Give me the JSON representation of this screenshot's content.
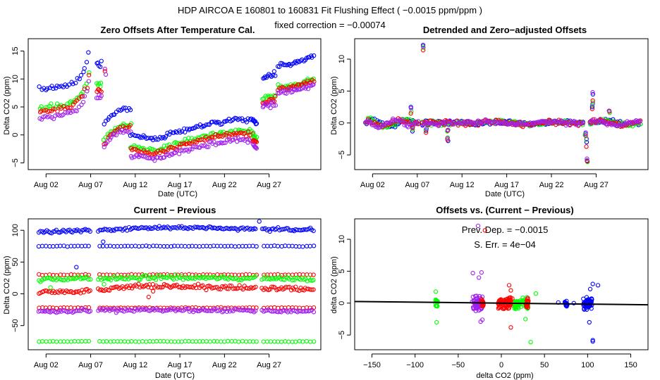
{
  "suptitle": "HDP   AIRCOA E   160801 to 160831   Fit Flushing Effect ( −0.0015 ppm/ppm )",
  "fixed_correction": "fixed correction = −0.00074",
  "colors": {
    "blue": "#0000ff",
    "green": "#00ff00",
    "red": "#ff0000",
    "purple": "#a020f0",
    "axis": "#000000"
  },
  "chart_data": [
    {
      "id": "p1",
      "type": "scatter",
      "title": "Zero Offsets After Temperature Cal.",
      "xlabel": "Date (UTC)",
      "ylabel": "Delta CO2 (ppm)",
      "xlim": [
        -1.0,
        31.8
      ],
      "ylim": [
        -6.2,
        17.2
      ],
      "xticks": [
        1,
        6,
        11,
        16,
        21,
        26
      ],
      "xticklabels": [
        "Aug 02",
        "Aug 07",
        "Aug 12",
        "Aug 17",
        "Aug 22",
        "Aug 27"
      ],
      "yticks": [
        -5,
        0,
        5,
        10,
        15
      ],
      "yticklabels": [
        "−5",
        "0",
        "5",
        "10",
        "15"
      ],
      "segments": [
        {
          "x0": 0.3,
          "x1": 5.9,
          "step": 0.22,
          "noise": 0.3,
          "base": [
            8.2,
            4.8,
            4.2,
            3.0
          ],
          "ctrl": [
            [
              0,
              0
            ],
            [
              3,
              0.6
            ],
            [
              4.5,
              2
            ],
            [
              5.3,
              4.5
            ],
            [
              5.6,
              7.2
            ]
          ]
        },
        {
          "x0": 6.7,
          "x1": 7.2,
          "step": 0.12,
          "noise": 0.6,
          "base": [
            12.3,
            8.8,
            7.8,
            7.0
          ],
          "ctrl": [
            [
              0,
              0
            ],
            [
              1,
              0
            ]
          ]
        },
        {
          "x0": 7.5,
          "x1": 10.5,
          "step": 0.2,
          "noise": 0.25,
          "base": [
            2.0,
            -0.8,
            -1.3,
            -1.9
          ],
          "ctrl": [
            [
              0,
              0
            ],
            [
              1,
              1.6
            ],
            [
              2,
              2.6
            ]
          ]
        },
        {
          "x0": 10.5,
          "x1": 24.2,
          "step": 0.18,
          "noise": 0.3,
          "base": [
            -0.2,
            -2.2,
            -2.7,
            -3.8
          ],
          "ctrl": [
            [
              0,
              0
            ],
            [
              3,
              -0.5
            ],
            [
              5,
              0.6
            ],
            [
              9,
              2.2
            ],
            [
              12,
              3.0
            ],
            [
              13.7,
              2.8
            ]
          ]
        },
        {
          "x0": 24.2,
          "x1": 24.6,
          "step": 0.08,
          "noise": 0.3,
          "base": [
            2.5,
            0.0,
            -0.8,
            -1.8
          ],
          "ctrl": [
            [
              0,
              0
            ],
            [
              1,
              -1.5
            ]
          ]
        },
        {
          "x0": 25.3,
          "x1": 26.8,
          "step": 0.14,
          "noise": 0.35,
          "base": [
            10.3,
            6.5,
            5.8,
            5.0
          ],
          "ctrl": [
            [
              0,
              0
            ],
            [
              1,
              0.4
            ]
          ]
        },
        {
          "x0": 27.0,
          "x1": 31.0,
          "step": 0.16,
          "noise": 0.25,
          "base": [
            12.5,
            8.5,
            8.2,
            7.5
          ],
          "ctrl": [
            [
              0,
              0
            ],
            [
              2,
              0.4
            ],
            [
              4,
              1.6
            ]
          ]
        }
      ],
      "extra_points": [
        {
          "x": 7.6,
          "y": 11.8,
          "s": 3
        },
        {
          "x": 7.6,
          "y": 11.4,
          "s": 2
        },
        {
          "x": 7.7,
          "y": 10.8,
          "s": 3
        }
      ]
    },
    {
      "id": "p2",
      "type": "scatter",
      "title": "Detrended and Zero−adjusted Offsets",
      "xlabel": "Date (UTC)",
      "ylabel": "Delta CO2 (ppm)",
      "xlim": [
        -1.0,
        31.8
      ],
      "ylim": [
        -7.3,
        13.2
      ],
      "xticks": [
        1,
        6,
        11,
        16,
        21,
        26
      ],
      "xticklabels": [
        "Aug 02",
        "Aug 07",
        "Aug 12",
        "Aug 17",
        "Aug 22",
        "Aug 27"
      ],
      "yticks": [
        -5,
        0,
        5,
        10
      ],
      "yticklabels": [
        "−5",
        "0",
        "5",
        "10"
      ],
      "range": [
        0.2,
        31.0
      ],
      "gaps": [
        [
          6.2,
          6.6
        ],
        [
          10.2,
          10.4
        ],
        [
          24.6,
          25.2
        ]
      ],
      "step": 0.16,
      "noise": 0.25,
      "bumps": [
        {
          "x0": 0.5,
          "x1": 5.6,
          "amp": 0.5,
          "freq": 1.6
        },
        {
          "x0": 10.5,
          "x1": 24.2,
          "amp": 0.15,
          "freq": 0.9
        },
        {
          "x0": 25.3,
          "x1": 31.0,
          "amp": 0.3,
          "freq": 1.2
        }
      ],
      "spikes": [
        {
          "x": 5.3,
          "ys": [
            2.5,
            1.8,
            1.5,
            2.3
          ]
        },
        {
          "x": 5.5,
          "ys": [
            -1.3,
            -1.0,
            -0.8,
            -0.6
          ]
        },
        {
          "x": 6.7,
          "ys": [
            12.2,
            11.8,
            11.4,
            12.0
          ]
        },
        {
          "x": 7.0,
          "ys": [
            -1.2,
            -1.0,
            -1.5,
            -0.9
          ]
        },
        {
          "x": 9.4,
          "ys": [
            -2.8,
            -2.3,
            -2.6,
            -2.4
          ]
        },
        {
          "x": 9.4,
          "ys": [
            -1.1,
            -1.3,
            -1.2,
            -1.1
          ]
        },
        {
          "x": 24.8,
          "ys": [
            -1.7,
            -1.9,
            -2.0,
            -1.5
          ]
        },
        {
          "x": 24.9,
          "ys": [
            -3.0,
            -2.6,
            -3.7,
            -2.5
          ]
        },
        {
          "x": 25.0,
          "ys": [
            -5.9,
            -6.1,
            -6.0,
            -5.6
          ]
        },
        {
          "x": 25.6,
          "ys": [
            4.5,
            2.8,
            2.2,
            4.8
          ]
        },
        {
          "x": 25.6,
          "ys": [
            2.5,
            3.2,
            3.5,
            3.0
          ]
        },
        {
          "x": 27.5,
          "ys": [
            1.9,
            1.6,
            1.8,
            1.9
          ]
        }
      ]
    },
    {
      "id": "p3",
      "type": "scatter",
      "title": "Current − Previous",
      "xlabel": "Date (UTC)",
      "ylabel": "Delta CO2 (ppm)",
      "xlim": [
        -1.0,
        31.8
      ],
      "ylim": [
        -88,
        118
      ],
      "xticks": [
        1,
        6,
        11,
        16,
        21,
        26
      ],
      "xticklabels": [
        "Aug 02",
        "Aug 07",
        "Aug 12",
        "Aug 17",
        "Aug 22",
        "Aug 27"
      ],
      "yticks": [
        -50,
        0,
        50,
        100
      ],
      "yticklabels": [
        "−50",
        "0",
        "50",
        "100"
      ],
      "range": [
        0.2,
        31.0
      ],
      "gaps": [
        [
          6.0,
          6.8
        ],
        [
          24.6,
          25.2
        ]
      ],
      "step": 0.4,
      "dense_step": 0.18,
      "bands": [
        {
          "color": "blue",
          "level": 100,
          "dense": true,
          "ctrl": [
            [
              0,
              -2
            ],
            [
              6,
              -1
            ],
            [
              11,
              3
            ],
            [
              16,
              5
            ],
            [
              20,
              4
            ],
            [
              24,
              2
            ],
            [
              31,
              1
            ]
          ],
          "noise": 2.0
        },
        {
          "color": "blue",
          "level": 75,
          "dense": false,
          "ctrl": [
            [
              0,
              0
            ],
            [
              31,
              0
            ]
          ],
          "noise": 0.4
        },
        {
          "color": "red",
          "level": 30,
          "dense": false,
          "ctrl": [
            [
              0,
              0
            ],
            [
              31,
              0
            ]
          ],
          "noise": 0.5
        },
        {
          "color": "green",
          "level": 23,
          "dense": true,
          "ctrl": [
            [
              0,
              0
            ],
            [
              12,
              2
            ],
            [
              20,
              3
            ],
            [
              31,
              0
            ]
          ],
          "noise": 2.5
        },
        {
          "color": "red",
          "level": 5,
          "dense": true,
          "ctrl": [
            [
              0,
              -2
            ],
            [
              6,
              -1
            ],
            [
              11,
              8
            ],
            [
              16,
              7
            ],
            [
              20,
              5
            ],
            [
              24,
              4
            ],
            [
              31,
              2
            ]
          ],
          "noise": 2.5
        },
        {
          "color": "red",
          "level": -22,
          "dense": false,
          "ctrl": [
            [
              0,
              0
            ],
            [
              31,
              0
            ]
          ],
          "noise": 0.5
        },
        {
          "color": "purple",
          "level": -28,
          "dense": true,
          "ctrl": [
            [
              0,
              0
            ],
            [
              12,
              3
            ],
            [
              20,
              2
            ],
            [
              31,
              0
            ]
          ],
          "noise": 2.0
        },
        {
          "color": "green",
          "level": -75,
          "dense": false,
          "ctrl": [
            [
              0,
              0
            ],
            [
              31,
              0
            ]
          ],
          "noise": 0.4
        }
      ],
      "outliers": [
        {
          "x": 4.4,
          "y": 42,
          "c": "blue"
        },
        {
          "x": 7.4,
          "y": 82,
          "c": "blue"
        },
        {
          "x": 24.9,
          "y": 114,
          "c": "blue"
        },
        {
          "x": 12.5,
          "y": -5,
          "c": "red"
        },
        {
          "x": 13.0,
          "y": 4,
          "c": "red"
        },
        {
          "x": 1.5,
          "y": 10,
          "c": "green"
        },
        {
          "x": 7.5,
          "y": 15,
          "c": "green"
        }
      ]
    },
    {
      "id": "p4",
      "type": "scatter",
      "title": "Offsets vs. (Current − Previous)",
      "xlabel": "delta CO2 (ppm)",
      "ylabel": "delta CO2 (ppm)",
      "xlim": [
        -170,
        170
      ],
      "ylim": [
        -7.3,
        13.2
      ],
      "xticks": [
        -150,
        -100,
        -50,
        0,
        50,
        100,
        150
      ],
      "xticklabels": [
        "−150",
        "−100",
        "−50",
        "0",
        "50",
        "100",
        "150"
      ],
      "yticks": [
        -5,
        0,
        5,
        10
      ],
      "yticklabels": [
        "−5",
        "0",
        "5",
        "10"
      ],
      "fit": {
        "slope": -0.0015,
        "intercept": 0.0
      },
      "annotation_line1": "Prev. Dep. = −0.0015",
      "annotation_line2": "S. Err. =  4e−04",
      "clusters": [
        {
          "c": "green",
          "x": -75,
          "w": 1.6,
          "n": 16,
          "sd": 0.6
        },
        {
          "c": "purple",
          "x": -28,
          "w": 6,
          "n": 70,
          "sd": 0.8
        },
        {
          "c": "red",
          "x": -22,
          "w": 1.5,
          "n": 12,
          "sd": 0.5
        },
        {
          "c": "red",
          "x": 5,
          "w": 9,
          "n": 80,
          "sd": 0.7
        },
        {
          "c": "green",
          "x": 23,
          "w": 8,
          "n": 70,
          "sd": 0.6
        },
        {
          "c": "red",
          "x": 30,
          "w": 1.5,
          "n": 16,
          "sd": 0.5
        },
        {
          "c": "blue",
          "x": 75,
          "w": 1.5,
          "n": 14,
          "sd": 0.4
        },
        {
          "c": "blue",
          "x": 100,
          "w": 5,
          "n": 70,
          "sd": 0.6
        }
      ],
      "outliers": [
        {
          "x": -76,
          "y": 1.8,
          "c": "green"
        },
        {
          "x": -75,
          "y": -3.0,
          "c": "green"
        },
        {
          "x": -33,
          "y": 4.7,
          "c": "purple"
        },
        {
          "x": -27,
          "y": 12.1,
          "c": "purple"
        },
        {
          "x": -23,
          "y": 4.8,
          "c": "purple"
        },
        {
          "x": -22,
          "y": -2.6,
          "c": "purple"
        },
        {
          "x": -24,
          "y": -2.9,
          "c": "purple"
        },
        {
          "x": -26,
          "y": 4.0,
          "c": "purple"
        },
        {
          "x": -19,
          "y": 11.4,
          "c": "red"
        },
        {
          "x": 11,
          "y": 2.0,
          "c": "red"
        },
        {
          "x": 11,
          "y": -3.8,
          "c": "red"
        },
        {
          "x": 9,
          "y": 2.8,
          "c": "red"
        },
        {
          "x": 28,
          "y": -2.5,
          "c": "green"
        },
        {
          "x": 34,
          "y": -6.1,
          "c": "green"
        },
        {
          "x": 40,
          "y": 1.5,
          "c": "green"
        },
        {
          "x": 102,
          "y": -3.0,
          "c": "blue"
        },
        {
          "x": 106,
          "y": -5.8,
          "c": "blue"
        },
        {
          "x": 106,
          "y": -6.0,
          "c": "blue"
        },
        {
          "x": 106,
          "y": 3.0,
          "c": "blue"
        },
        {
          "x": 112,
          "y": 2.8,
          "c": "blue"
        },
        {
          "x": 84,
          "y": 0.0,
          "c": "blue"
        },
        {
          "x": 66,
          "y": 0.1,
          "c": "blue"
        },
        {
          "x": 103,
          "y": 2.2,
          "c": "blue"
        }
      ]
    }
  ]
}
